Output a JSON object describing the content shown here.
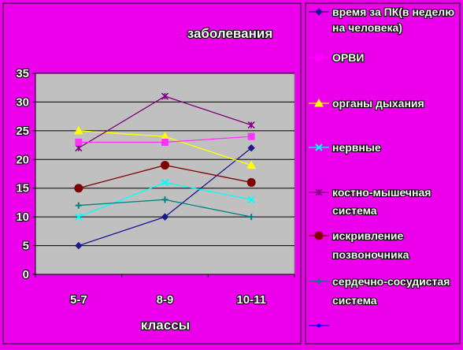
{
  "chart_data": {
    "type": "line",
    "title": "заболевания",
    "xlabel": "классы",
    "ylabel": "",
    "categories": [
      "5-7",
      "8-9",
      "10-11"
    ],
    "ylim": [
      0,
      35
    ],
    "yticks": [
      0,
      5,
      10,
      15,
      20,
      25,
      30,
      35
    ],
    "grid": true,
    "legend_position": "right",
    "colors": {
      "background": "#ec00ec",
      "plot_area": "#c0c0c0",
      "gridline": "#000000",
      "axis_text": "#ffffff"
    },
    "series": [
      {
        "name": "время за ПК(в неделю на человека)",
        "values": [
          5,
          10,
          22
        ],
        "color": "#1a1a8c",
        "marker": "diamond"
      },
      {
        "name": "ОРВИ",
        "values": [
          null,
          null,
          null
        ],
        "color": "#ff00ff",
        "marker": "square"
      },
      {
        "name": "органы дыхания",
        "values": [
          25,
          24,
          19
        ],
        "color": "#ffff00",
        "marker": "triangle"
      },
      {
        "name": "нервные",
        "values": [
          10,
          16,
          13
        ],
        "color": "#00ffff",
        "marker": "x"
      },
      {
        "name": "костно-мышечная система",
        "values": [
          22,
          31,
          26
        ],
        "color": "#800080",
        "marker": "star"
      },
      {
        "name": "искривление позвоночника",
        "values": [
          15,
          19,
          16
        ],
        "color": "#800000",
        "marker": "circle"
      },
      {
        "name": "сердечно-сосудистая система",
        "values": [
          12,
          13,
          10
        ],
        "color": "#008080",
        "marker": "plus"
      },
      {
        "name": "",
        "values": [
          null,
          null,
          null
        ],
        "color": "#0000ff",
        "marker": "dot"
      },
      {
        "name": "",
        "values": [
          23,
          23,
          24
        ],
        "color": "#ff33ff",
        "marker": "square"
      }
    ],
    "legend": [
      {
        "series": 0,
        "lines": [
          "время за ПК(в неделю",
          "на человека)"
        ]
      },
      {
        "series": 1,
        "lines": [
          "ОРВИ"
        ]
      },
      {
        "series": 2,
        "lines": [
          "органы дыхания"
        ]
      },
      {
        "series": 3,
        "lines": [
          "нервные"
        ]
      },
      {
        "series": 4,
        "lines": [
          "костно-мышечная",
          "система"
        ]
      },
      {
        "series": 5,
        "lines": [
          "искривление",
          "позвоночника"
        ]
      },
      {
        "series": 6,
        "lines": [
          "сердечно-сосудистая",
          "система"
        ]
      },
      {
        "series": 7,
        "lines": []
      }
    ]
  }
}
